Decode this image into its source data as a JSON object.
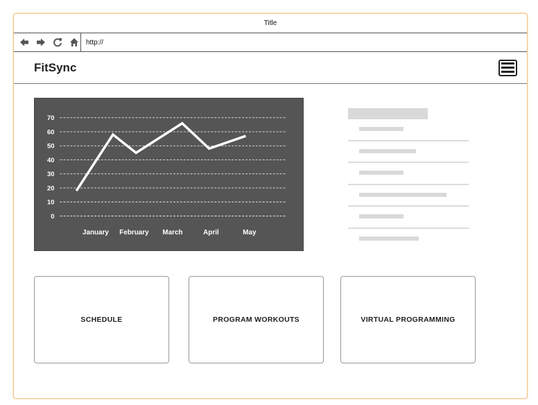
{
  "window": {
    "title": "Title"
  },
  "browser": {
    "url": "http://",
    "icons": [
      "back-arrow-icon",
      "forward-arrow-icon",
      "refresh-icon",
      "home-icon"
    ]
  },
  "app": {
    "brand": "FitSync",
    "menu_icon": "hamburger-menu-icon"
  },
  "chart_data": {
    "type": "line",
    "x": [
      "January",
      "February",
      "March",
      "April",
      "May"
    ],
    "y_ticks": [
      0,
      10,
      20,
      30,
      40,
      50,
      60,
      70
    ],
    "ylim": [
      0,
      70
    ],
    "grid": true,
    "series": [
      {
        "points": [
          [
            0.0,
            18
          ],
          [
            0.95,
            58
          ],
          [
            1.55,
            45
          ],
          [
            2.75,
            66
          ],
          [
            3.45,
            48
          ],
          [
            4.4,
            57
          ]
        ]
      }
    ]
  },
  "side_list": {
    "rows": 6
  },
  "cards": [
    {
      "label": "SCHEDULE"
    },
    {
      "label": "PROGRAM WORKOUTS"
    },
    {
      "label": "VIRTUAL PROGRAMMING"
    }
  ],
  "colors": {
    "chart_bg": "#555555",
    "line": "#ffffff",
    "accent_border": "#f0c890"
  }
}
